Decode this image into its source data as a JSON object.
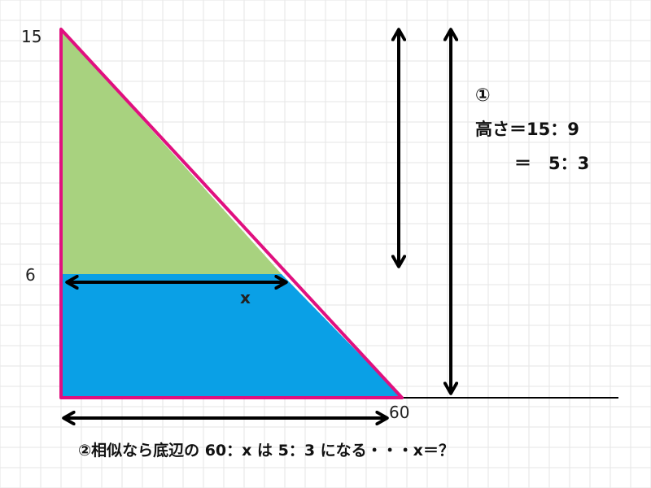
{
  "labels": {
    "y_top": "15",
    "y_mid": "6",
    "x_right": "60",
    "x_var": "x"
  },
  "note1": {
    "marker": "①",
    "line1": "高さ＝15：9",
    "line2": "＝　5：3"
  },
  "note2": "②相似なら底辺の 60：x は 5：3 になる・・・x＝？",
  "colors": {
    "upper_triangle": "#a8d27f",
    "lower_trapezoid": "#0aa0e6",
    "outline": "#e0107f",
    "arrow": "#000000",
    "grid": "#e6e6e6"
  }
}
